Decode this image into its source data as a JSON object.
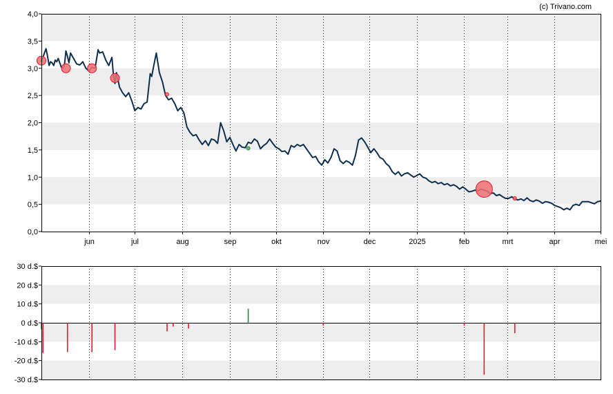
{
  "credit": "(c) Trivano.com",
  "colors": {
    "line": "#0d2f4f",
    "band": "#eeeeee",
    "sell": "#e8162b",
    "buy": "#1e8c3c",
    "sell_marker": "#f07072",
    "buy_marker": "#5fa86d"
  },
  "chart_data": [
    {
      "type": "line",
      "title": "",
      "xlabel": "",
      "ylabel": "",
      "ylim": [
        0,
        4
      ],
      "yticks": [
        "0,0",
        "0,5",
        "1,0",
        "1,5",
        "2,0",
        "2,5",
        "3,0",
        "3,5",
        "4,0"
      ],
      "xlim": [
        "2024-05-01",
        "2025-05-01"
      ],
      "xticks": [
        {
          "label": "jun",
          "date": "2024-06-01"
        },
        {
          "label": "jul",
          "date": "2024-07-01"
        },
        {
          "label": "aug",
          "date": "2024-08-01"
        },
        {
          "label": "sep",
          "date": "2024-09-01"
        },
        {
          "label": "okt",
          "date": "2024-10-01"
        },
        {
          "label": "nov",
          "date": "2024-11-01"
        },
        {
          "label": "dec",
          "date": "2024-12-01"
        },
        {
          "label": "2025",
          "date": "2025-01-01"
        },
        {
          "label": "feb",
          "date": "2025-02-01"
        },
        {
          "label": "mrt",
          "date": "2025-03-01"
        },
        {
          "label": "apr",
          "date": "2025-04-01"
        },
        {
          "label": "mei",
          "date": "2025-05-01"
        }
      ],
      "grid": "vertical dotted at month ticks, alternating horizontal bands",
      "series": [
        {
          "values": [
            [
              "2024-05-01",
              3.14
            ],
            [
              "2024-05-02",
              3.2
            ],
            [
              "2024-05-03",
              3.28
            ],
            [
              "2024-05-04",
              3.36
            ],
            [
              "2024-05-05",
              3.22
            ],
            [
              "2024-05-06",
              3.05
            ],
            [
              "2024-05-07",
              3.12
            ],
            [
              "2024-05-08",
              3.1
            ],
            [
              "2024-05-09",
              3.05
            ],
            [
              "2024-05-10",
              3.15
            ],
            [
              "2024-05-11",
              3.12
            ],
            [
              "2024-05-12",
              3.18
            ],
            [
              "2024-05-13",
              3.1
            ],
            [
              "2024-05-14",
              3.02
            ],
            [
              "2024-05-15",
              3.0
            ],
            [
              "2024-05-16",
              3.05
            ],
            [
              "2024-05-17",
              3.32
            ],
            [
              "2024-05-18",
              3.22
            ],
            [
              "2024-05-19",
              3.1
            ],
            [
              "2024-05-20",
              3.28
            ],
            [
              "2024-05-22",
              3.18
            ],
            [
              "2024-05-24",
              3.08
            ],
            [
              "2024-05-26",
              3.06
            ],
            [
              "2024-05-28",
              3.12
            ],
            [
              "2024-05-30",
              3.0
            ],
            [
              "2024-06-01",
              2.95
            ],
            [
              "2024-06-03",
              3.02
            ],
            [
              "2024-06-05",
              3.0
            ],
            [
              "2024-06-07",
              3.34
            ],
            [
              "2024-06-08",
              3.28
            ],
            [
              "2024-06-10",
              3.3
            ],
            [
              "2024-06-12",
              3.15
            ],
            [
              "2024-06-14",
              3.05
            ],
            [
              "2024-06-16",
              3.2
            ],
            [
              "2024-06-17",
              2.88
            ],
            [
              "2024-06-18",
              2.72
            ],
            [
              "2024-06-19",
              2.92
            ],
            [
              "2024-06-21",
              2.65
            ],
            [
              "2024-06-23",
              2.55
            ],
            [
              "2024-06-25",
              2.48
            ],
            [
              "2024-06-27",
              2.55
            ],
            [
              "2024-06-29",
              2.4
            ],
            [
              "2024-07-01",
              2.22
            ],
            [
              "2024-07-03",
              2.28
            ],
            [
              "2024-07-05",
              2.25
            ],
            [
              "2024-07-07",
              2.35
            ],
            [
              "2024-07-09",
              2.38
            ],
            [
              "2024-07-11",
              2.9
            ],
            [
              "2024-07-12",
              2.85
            ],
            [
              "2024-07-13",
              3.0
            ],
            [
              "2024-07-15",
              3.28
            ],
            [
              "2024-07-17",
              2.92
            ],
            [
              "2024-07-19",
              2.75
            ],
            [
              "2024-07-21",
              2.5
            ],
            [
              "2024-07-23",
              2.42
            ],
            [
              "2024-07-25",
              2.45
            ],
            [
              "2024-07-27",
              2.35
            ],
            [
              "2024-07-29",
              2.22
            ],
            [
              "2024-07-31",
              2.28
            ],
            [
              "2024-08-02",
              2.18
            ],
            [
              "2024-08-04",
              1.92
            ],
            [
              "2024-08-06",
              1.82
            ],
            [
              "2024-08-08",
              1.76
            ],
            [
              "2024-08-10",
              1.78
            ],
            [
              "2024-08-12",
              1.68
            ],
            [
              "2024-08-14",
              1.6
            ],
            [
              "2024-08-16",
              1.67
            ],
            [
              "2024-08-18",
              1.58
            ],
            [
              "2024-08-20",
              1.7
            ],
            [
              "2024-08-22",
              1.68
            ],
            [
              "2024-08-24",
              1.62
            ],
            [
              "2024-08-26",
              2.0
            ],
            [
              "2024-08-28",
              1.85
            ],
            [
              "2024-08-30",
              1.65
            ],
            [
              "2024-09-01",
              1.73
            ],
            [
              "2024-09-03",
              1.6
            ],
            [
              "2024-09-05",
              1.48
            ],
            [
              "2024-09-07",
              1.6
            ],
            [
              "2024-09-09",
              1.55
            ],
            [
              "2024-09-11",
              1.54
            ],
            [
              "2024-09-13",
              1.64
            ],
            [
              "2024-09-15",
              1.62
            ],
            [
              "2024-09-17",
              1.7
            ],
            [
              "2024-09-19",
              1.66
            ],
            [
              "2024-09-21",
              1.52
            ],
            [
              "2024-09-23",
              1.58
            ],
            [
              "2024-09-25",
              1.62
            ],
            [
              "2024-09-27",
              1.7
            ],
            [
              "2024-09-29",
              1.62
            ],
            [
              "2024-10-01",
              1.55
            ],
            [
              "2024-10-03",
              1.52
            ],
            [
              "2024-10-05",
              1.47
            ],
            [
              "2024-10-07",
              1.48
            ],
            [
              "2024-10-09",
              1.42
            ],
            [
              "2024-10-11",
              1.58
            ],
            [
              "2024-10-13",
              1.55
            ],
            [
              "2024-10-15",
              1.6
            ],
            [
              "2024-10-17",
              1.57
            ],
            [
              "2024-10-19",
              1.6
            ],
            [
              "2024-10-21",
              1.52
            ],
            [
              "2024-10-23",
              1.44
            ],
            [
              "2024-10-25",
              1.36
            ],
            [
              "2024-10-27",
              1.38
            ],
            [
              "2024-10-29",
              1.28
            ],
            [
              "2024-10-31",
              1.22
            ],
            [
              "2024-11-02",
              1.32
            ],
            [
              "2024-11-04",
              1.26
            ],
            [
              "2024-11-06",
              1.36
            ],
            [
              "2024-11-08",
              1.52
            ],
            [
              "2024-11-10",
              1.48
            ],
            [
              "2024-11-12",
              1.3
            ],
            [
              "2024-11-14",
              1.25
            ],
            [
              "2024-11-16",
              1.3
            ],
            [
              "2024-11-18",
              1.27
            ],
            [
              "2024-11-20",
              1.22
            ],
            [
              "2024-11-22",
              1.4
            ],
            [
              "2024-11-24",
              1.68
            ],
            [
              "2024-11-26",
              1.72
            ],
            [
              "2024-11-28",
              1.65
            ],
            [
              "2024-11-30",
              1.55
            ],
            [
              "2024-12-02",
              1.45
            ],
            [
              "2024-12-04",
              1.52
            ],
            [
              "2024-12-06",
              1.45
            ],
            [
              "2024-12-08",
              1.36
            ],
            [
              "2024-12-10",
              1.33
            ],
            [
              "2024-12-12",
              1.25
            ],
            [
              "2024-12-14",
              1.2
            ],
            [
              "2024-12-16",
              1.1
            ],
            [
              "2024-12-18",
              1.05
            ],
            [
              "2024-12-20",
              1.1
            ],
            [
              "2024-12-22",
              1.02
            ],
            [
              "2024-12-24",
              1.06
            ],
            [
              "2024-12-26",
              1.08
            ],
            [
              "2024-12-28",
              1.04
            ],
            [
              "2024-12-30",
              1.0
            ],
            [
              "2025-01-01",
              1.03
            ],
            [
              "2025-01-03",
              1.06
            ],
            [
              "2025-01-05",
              1.0
            ],
            [
              "2025-01-07",
              0.98
            ],
            [
              "2025-01-09",
              0.93
            ],
            [
              "2025-01-11",
              0.9
            ],
            [
              "2025-01-13",
              0.92
            ],
            [
              "2025-01-15",
              0.88
            ],
            [
              "2025-01-17",
              0.9
            ],
            [
              "2025-01-19",
              0.86
            ],
            [
              "2025-01-21",
              0.88
            ],
            [
              "2025-01-23",
              0.84
            ],
            [
              "2025-01-25",
              0.86
            ],
            [
              "2025-01-27",
              0.83
            ],
            [
              "2025-01-29",
              0.78
            ],
            [
              "2025-01-31",
              0.82
            ],
            [
              "2025-02-02",
              0.78
            ],
            [
              "2025-02-04",
              0.73
            ],
            [
              "2025-02-06",
              0.74
            ],
            [
              "2025-02-08",
              0.76
            ],
            [
              "2025-02-10",
              0.75
            ],
            [
              "2025-02-12",
              0.78
            ],
            [
              "2025-02-14",
              0.76
            ],
            [
              "2025-02-16",
              0.74
            ],
            [
              "2025-02-18",
              0.7
            ],
            [
              "2025-02-20",
              0.71
            ],
            [
              "2025-02-22",
              0.66
            ],
            [
              "2025-02-24",
              0.68
            ],
            [
              "2025-02-26",
              0.64
            ],
            [
              "2025-02-28",
              0.61
            ],
            [
              "2025-03-02",
              0.61
            ],
            [
              "2025-03-04",
              0.64
            ],
            [
              "2025-03-06",
              0.6
            ],
            [
              "2025-03-08",
              0.58
            ],
            [
              "2025-03-10",
              0.6
            ],
            [
              "2025-03-12",
              0.57
            ],
            [
              "2025-03-14",
              0.62
            ],
            [
              "2025-03-16",
              0.57
            ],
            [
              "2025-03-18",
              0.55
            ],
            [
              "2025-03-20",
              0.58
            ],
            [
              "2025-03-22",
              0.56
            ],
            [
              "2025-03-24",
              0.52
            ],
            [
              "2025-03-26",
              0.55
            ],
            [
              "2025-03-28",
              0.54
            ],
            [
              "2025-03-30",
              0.52
            ],
            [
              "2025-04-01",
              0.48
            ],
            [
              "2025-04-03",
              0.46
            ],
            [
              "2025-04-05",
              0.44
            ],
            [
              "2025-04-07",
              0.4
            ],
            [
              "2025-04-09",
              0.43
            ],
            [
              "2025-04-11",
              0.4
            ],
            [
              "2025-04-13",
              0.48
            ],
            [
              "2025-04-15",
              0.5
            ],
            [
              "2025-04-17",
              0.48
            ],
            [
              "2025-04-19",
              0.55
            ],
            [
              "2025-04-21",
              0.55
            ],
            [
              "2025-04-23",
              0.55
            ],
            [
              "2025-04-25",
              0.53
            ],
            [
              "2025-04-27",
              0.51
            ],
            [
              "2025-04-29",
              0.55
            ],
            [
              "2025-05-01",
              0.56
            ]
          ]
        }
      ],
      "annotations": [
        {
          "kind": "sell",
          "date": "2024-05-01",
          "value": 3.14,
          "size": "medium"
        },
        {
          "kind": "sell",
          "date": "2024-05-17",
          "value": 3.0,
          "size": "medium"
        },
        {
          "kind": "sell",
          "date": "2024-06-03",
          "value": 3.0,
          "size": "medium"
        },
        {
          "kind": "sell",
          "date": "2024-06-18",
          "value": 2.82,
          "size": "medium"
        },
        {
          "kind": "sell",
          "date": "2024-07-22",
          "value": 2.52,
          "size": "small"
        },
        {
          "kind": "buy",
          "date": "2024-09-13",
          "value": 1.53,
          "size": "small"
        },
        {
          "kind": "sell",
          "date": "2025-02-14",
          "value": 0.78,
          "size": "large"
        },
        {
          "kind": "sell",
          "date": "2025-03-06",
          "value": 0.61,
          "size": "small"
        }
      ]
    },
    {
      "type": "bar",
      "title": "",
      "xlabel": "",
      "ylabel": "",
      "ylim": [
        -30,
        30
      ],
      "yticks": [
        "-30 d.$",
        "-20 d.$",
        "-10 d.$",
        "0 d.$",
        "10 d.$",
        "20 d.$",
        "30 d.$"
      ],
      "values": [
        {
          "date": "2024-05-01",
          "value": -3.5,
          "kind": "sell"
        },
        {
          "date": "2024-05-02",
          "value": -16,
          "kind": "sell"
        },
        {
          "date": "2024-05-18",
          "value": -15.5,
          "kind": "sell"
        },
        {
          "date": "2024-06-03",
          "value": -15.5,
          "kind": "sell"
        },
        {
          "date": "2024-06-18",
          "value": -14.5,
          "kind": "sell"
        },
        {
          "date": "2024-07-22",
          "value": -4.5,
          "kind": "sell"
        },
        {
          "date": "2024-07-26",
          "value": -2,
          "kind": "sell"
        },
        {
          "date": "2024-08-05",
          "value": -3,
          "kind": "sell"
        },
        {
          "date": "2024-09-13",
          "value": 7.5,
          "kind": "buy"
        },
        {
          "date": "2024-11-01",
          "value": -1.5,
          "kind": "sell"
        },
        {
          "date": "2025-02-01",
          "value": -1.5,
          "kind": "sell"
        },
        {
          "date": "2025-02-14",
          "value": -27.5,
          "kind": "sell"
        },
        {
          "date": "2025-03-06",
          "value": -5.5,
          "kind": "sell"
        }
      ]
    }
  ]
}
